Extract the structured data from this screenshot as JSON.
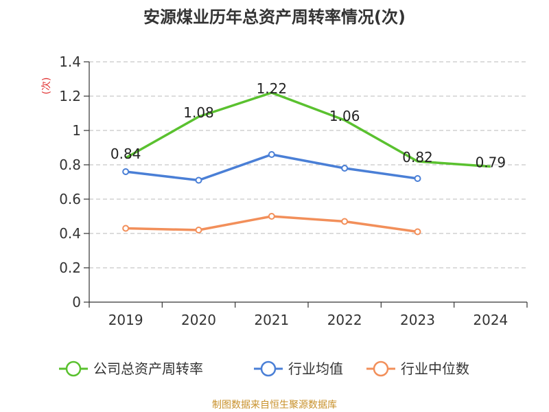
{
  "chart_data": {
    "type": "line",
    "title": "安源煤业历年总资产周转率情况(次)",
    "ylabel": "(次)",
    "categories": [
      "2019",
      "2020",
      "2021",
      "2022",
      "2023",
      "2024"
    ],
    "ylim": [
      0,
      1.4
    ],
    "yticks": [
      0,
      0.2,
      0.4,
      0.6,
      0.8,
      1,
      1.2,
      1.4
    ],
    "ytick_labels": [
      "0",
      "0.2",
      "0.4",
      "0.6",
      "0.8",
      "1",
      "1.2",
      "1.4"
    ],
    "grid": true,
    "legend_position": "bottom",
    "series": [
      {
        "name": "公司总资产周转率",
        "color": "#5ac12f",
        "values": [
          0.84,
          1.08,
          1.22,
          1.06,
          0.82,
          0.79
        ],
        "data_labels": [
          "0.84",
          "1.08",
          "1.22",
          "1.06",
          "0.82",
          "0.79"
        ]
      },
      {
        "name": "行业均值",
        "color": "#4a7fd6",
        "values": [
          0.76,
          0.71,
          0.86,
          0.78,
          0.72,
          null
        ]
      },
      {
        "name": "行业中位数",
        "color": "#f28f5a",
        "values": [
          0.43,
          0.42,
          0.5,
          0.47,
          0.41,
          null
        ]
      }
    ],
    "source": "制图数据来自恒生聚源数据库"
  }
}
